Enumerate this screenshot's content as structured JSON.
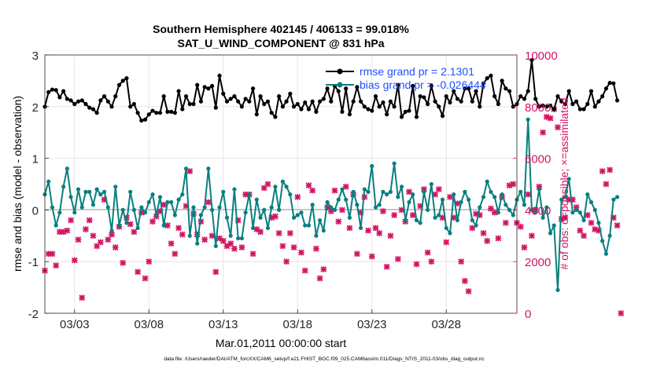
{
  "chart_data": {
    "type": "line",
    "title": "Southern Hemisphere 402145 / 406133 = 99.018%",
    "subtitle": "SAT_U_WIND_COMPONENT @ 831 hPa",
    "xlabel": "Mar.01,2011 00:00:00 start",
    "ylabel_left": "rmse and bias (model - observation)",
    "ylabel_right": "# of obs: o=possible; ×=assimilated",
    "footer": "data file: /Users/raeder/DAI/ATM_forcXX/CAM6_setup/f.e21.FHIST_BGC.f09_025.CAM6assim.011/Diags_NTrS_2011-03/obs_diag_output.nc",
    "xlim": [
      1,
      32.75
    ],
    "ylim_left": [
      -2,
      3
    ],
    "ylim_right": [
      0,
      10000
    ],
    "yticks_left": [
      -2,
      -1,
      0,
      1,
      2,
      3
    ],
    "yticks_right": [
      0,
      2000,
      4000,
      6000,
      8000,
      10000
    ],
    "xticks": [
      {
        "value": 3,
        "label": "03/03"
      },
      {
        "value": 8,
        "label": "03/08"
      },
      {
        "value": 13,
        "label": "03/13"
      },
      {
        "value": 18,
        "label": "03/18"
      },
      {
        "value": 23,
        "label": "03/23"
      },
      {
        "value": 28,
        "label": "03/28"
      }
    ],
    "grid": true,
    "legend_position": "top-right",
    "x_start": 1.0,
    "x_step": 0.25,
    "series": [
      {
        "name": "rmse grand pr = 2.1301",
        "axis": "left",
        "color": "#000000",
        "values": [
          2.0,
          2.28,
          2.33,
          2.32,
          2.18,
          2.3,
          2.15,
          2.12,
          2.05,
          2.1,
          2.12,
          2.05,
          1.98,
          1.95,
          1.88,
          2.12,
          2.2,
          2.1,
          2.0,
          2.2,
          2.42,
          2.5,
          2.55,
          2.0,
          2.05,
          1.88,
          1.73,
          1.75,
          1.85,
          1.92,
          1.88,
          1.88,
          2.2,
          1.9,
          1.9,
          1.88,
          2.3,
          1.95,
          2.2,
          2.05,
          2.05,
          2.42,
          2.1,
          2.38,
          2.35,
          2.4,
          1.98,
          2.6,
          2.25,
          2.1,
          2.15,
          2.2,
          2.1,
          2.0,
          2.15,
          2.1,
          2.35,
          1.85,
          2.2,
          2.05,
          2.1,
          1.88,
          1.8,
          2.2,
          2.0,
          2.1,
          2.25,
          2.0,
          2.05,
          1.95,
          2.08,
          1.95,
          2.1,
          1.9,
          2.1,
          2.15,
          2.35,
          2.1,
          2.4,
          2.3,
          1.9,
          2.35,
          1.85,
          2.1,
          2.38,
          2.1,
          2.0,
          1.95,
          1.92,
          2.2,
          2.0,
          2.08,
          1.85,
          2.1,
          2.0,
          2.42,
          1.8,
          1.9,
          1.92,
          2.4,
          1.8,
          2.2,
          2.18,
          2.05,
          2.4,
          2.1,
          2.0,
          1.82,
          2.2,
          2.08,
          2.3,
          2.15,
          2.1,
          2.35,
          2.35,
          2.1,
          2.3,
          2.0,
          2.45,
          2.55,
          2.6,
          2.2,
          2.05,
          2.5,
          2.35,
          2.3,
          2.0,
          2.05,
          2.2,
          2.15,
          2.3,
          2.9,
          2.15,
          2.0,
          2.02,
          2.0,
          2.02,
          1.95,
          2.2,
          2.1,
          2.05,
          2.3,
          2.05,
          2.1,
          1.95,
          1.95,
          2.05,
          2.3,
          2.0,
          2.1,
          2.2,
          2.35,
          2.46,
          2.45,
          2.12
        ]
      },
      {
        "name": "bias grand pr = -0.026444",
        "axis": "left",
        "color": "#0a7f7f",
        "values": [
          0.3,
          0.55,
          0.05,
          -0.3,
          -0.05,
          0.45,
          0.8,
          0.25,
          -0.05,
          0.4,
          0.05,
          0.35,
          0.35,
          0.1,
          0.4,
          0.3,
          0.35,
          0.05,
          -0.4,
          0.45,
          -0.3,
          0.0,
          -0.25,
          0.35,
          0.0,
          -0.35,
          0.05,
          -0.05,
          0.15,
          0.3,
          -0.1,
          0.25,
          -0.3,
          0.15,
          0.15,
          -0.1,
          0.2,
          0.3,
          0.8,
          -0.5,
          0.05,
          -0.65,
          -0.1,
          0.05,
          0.8,
          0.0,
          -0.7,
          0.05,
          0.35,
          -0.15,
          -0.5,
          0.4,
          -0.55,
          -0.55,
          -0.05,
          0.3,
          -0.35,
          0.2,
          -0.15,
          0.0,
          -0.35,
          0.05,
          0.45,
          0.0,
          0.55,
          0.45,
          0.3,
          -0.15,
          -0.1,
          -0.05,
          -0.3,
          -0.3,
          0.1,
          -0.5,
          -0.2,
          -0.4,
          0.15,
          0.05,
          0.0,
          0.2,
          0.4,
          0.2,
          -0.15,
          0.35,
          0.1,
          -0.35,
          0.4,
          0.35,
          0.85,
          0.05,
          0.1,
          0.35,
          0.3,
          0.35,
          0.9,
          0.25,
          0.45,
          -0.2,
          0.15,
          0.3,
          -0.2,
          -0.25,
          0.35,
          0.0,
          0.5,
          -0.15,
          -0.1,
          0.2,
          -0.35,
          -0.45,
          0.3,
          -0.2,
          0.15,
          0.35,
          0.2,
          -0.2,
          -0.3,
          0.05,
          0.25,
          0.55,
          0.35,
          0.25,
          -0.05,
          0.3,
          0.1,
          0.0,
          -0.1,
          0.2,
          0.35,
          0.1,
          1.75,
          0.0,
          -0.05,
          0.4,
          -0.15,
          0.05,
          -0.45,
          -0.3,
          -1.55,
          0.2,
          0.25,
          0.6,
          -0.05,
          0.0,
          -0.05,
          -0.2,
          0.3,
          0.15,
          0.0,
          -0.25,
          -0.6,
          -0.85,
          -0.5,
          0.2,
          0.25
        ]
      },
      {
        "name": "# assimilated",
        "axis": "right",
        "color": "#d21463",
        "values": [
          1650,
          2300,
          2300,
          1850,
          3150,
          3150,
          3200,
          3600,
          2050,
          2850,
          600,
          3250,
          3600,
          3000,
          2600,
          2750,
          4400,
          2850,
          3050,
          2550,
          3350,
          1950,
          3700,
          3450,
          3150,
          1600,
          3900,
          1350,
          2000,
          3550,
          3750,
          3950,
          4200,
          3400,
          2700,
          2300,
          3300,
          3050,
          4150,
          5500,
          3850,
          3050,
          3550,
          2850,
          4300,
          3000,
          1600,
          2900,
          2800,
          2600,
          2700,
          2500,
          3600,
          2550,
          4600,
          4600,
          2300,
          3250,
          3150,
          4850,
          5000,
          3700,
          3750,
          3100,
          2600,
          2000,
          3100,
          2550,
          4500,
          2350,
          1650,
          4950,
          4750,
          2500,
          1350,
          1700,
          4100,
          3950,
          4750,
          3550,
          4000,
          4900,
          3300,
          4600,
          2300,
          3900,
          4500,
          3200,
          2200,
          3300,
          3100,
          3950,
          1800,
          3000,
          3800,
          2100,
          4000,
          3550,
          4700,
          3800,
          1900,
          4150,
          4800,
          2350,
          2000,
          4600,
          4800,
          3700,
          2750,
          4500,
          3700,
          4250,
          2000,
          1250,
          850,
          3300,
          3850,
          3800,
          3100,
          2800,
          4050,
          3900,
          2900,
          4500,
          3500,
          4950,
          5000,
          3500,
          3350,
          2550,
          4600,
          3000,
          4000,
          4900,
          7000,
          7600,
          7550,
          7900,
          7200,
          3650,
          3700,
          4400,
          4400,
          4100,
          3200,
          3000,
          3800,
          3500,
          3250,
          3200,
          5500,
          5000,
          5550,
          3700,
          3400,
          0
        ]
      }
    ]
  }
}
